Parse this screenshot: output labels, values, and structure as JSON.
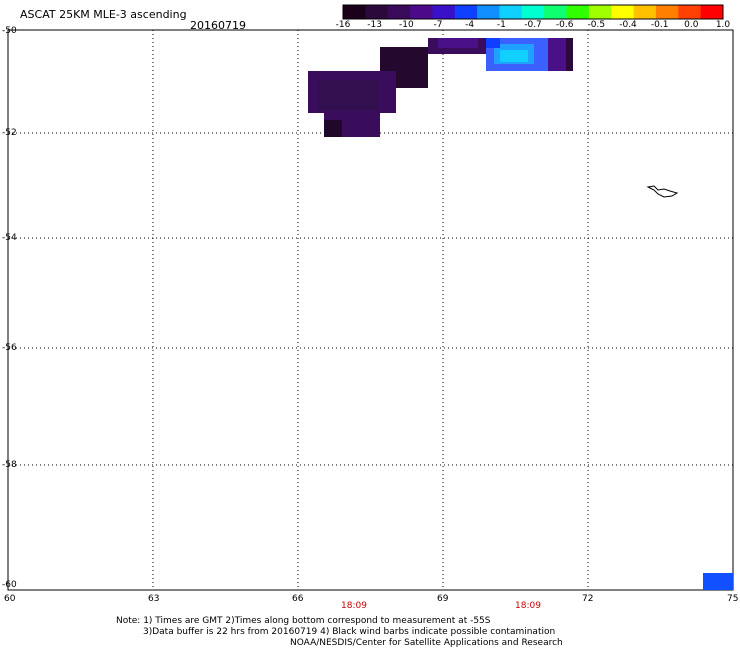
{
  "title": "ASCAT 25KM MLE-3 ascending",
  "date": "20160719",
  "colorbar": {
    "labels": [
      "-16",
      "-13",
      "-10",
      "-7",
      "-4",
      "-1",
      "-0.7",
      "-0.6",
      "-0.5",
      "-0.4",
      "-0.1",
      "0.0",
      "1.0"
    ],
    "colors": [
      "#1a0018",
      "#2a0a3a",
      "#3a0a5a",
      "#4a0a8a",
      "#3a10c8",
      "#1040ff",
      "#1090ff",
      "#10d0ff",
      "#00ffd0",
      "#10ff70",
      "#30ff00",
      "#a0ff00",
      "#ffff00",
      "#ffc000",
      "#ff8000",
      "#ff4000",
      "#ff0000"
    ]
  },
  "lat_labels": [
    "-50",
    "-52",
    "-54",
    "-56",
    "-58",
    "-60"
  ],
  "lon_labels": [
    "60",
    "63",
    "66",
    "69",
    "72",
    "75"
  ],
  "time_labels": [
    "18:09",
    "18:09"
  ],
  "notes": [
    "Note: 1) Times are GMT 2)Times along bottom correspond to measurement at -55S",
    "3)Data buffer is 22 hrs from 20160719 4) Black wind barbs indicate possible contamination",
    "NOAA/NESDIS/Center for Satellite Applications and Research"
  ]
}
